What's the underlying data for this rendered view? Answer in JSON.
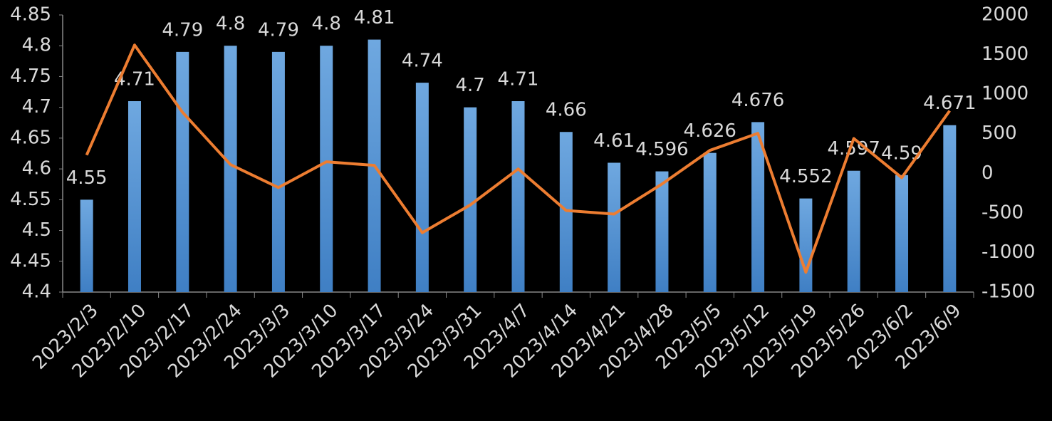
{
  "chart_data": {
    "type": "bar-line",
    "categories": [
      "2023/2/3",
      "2023/2/10",
      "2023/2/17",
      "2023/2/24",
      "2023/3/3",
      "2023/3/10",
      "2023/3/17",
      "2023/3/24",
      "2023/3/31",
      "2023/4/7",
      "2023/4/14",
      "2023/4/21",
      "2023/4/28",
      "2023/5/5",
      "2023/5/12",
      "2023/5/19",
      "2023/5/26",
      "2023/6/2",
      "2023/6/9"
    ],
    "series": [
      {
        "type": "bar",
        "color": "#5b9bd5",
        "values": [
          4.55,
          4.71,
          4.79,
          4.8,
          4.79,
          4.8,
          4.81,
          4.74,
          4.7,
          4.71,
          4.66,
          4.61,
          4.596,
          4.626,
          4.676,
          4.552,
          4.597,
          4.59,
          4.671
        ]
      },
      {
        "type": "line",
        "axis": "y2",
        "color": "#ed7d31",
        "values": [
          230,
          1620,
          770,
          110,
          -180,
          145,
          100,
          -750,
          -400,
          55,
          -470,
          -515,
          -135,
          290,
          505,
          -1250,
          440,
          -55,
          790
        ]
      }
    ],
    "ylim": [
      4.4,
      4.85
    ],
    "yticks": [
      4.4,
      4.45,
      4.5,
      4.55,
      4.6,
      4.65,
      4.7,
      4.75,
      4.8,
      4.85
    ],
    "y2lim": [
      -1500,
      2000
    ],
    "y2ticks": [
      -1500,
      -1000,
      -500,
      0,
      500,
      1000,
      1500,
      2000
    ]
  }
}
